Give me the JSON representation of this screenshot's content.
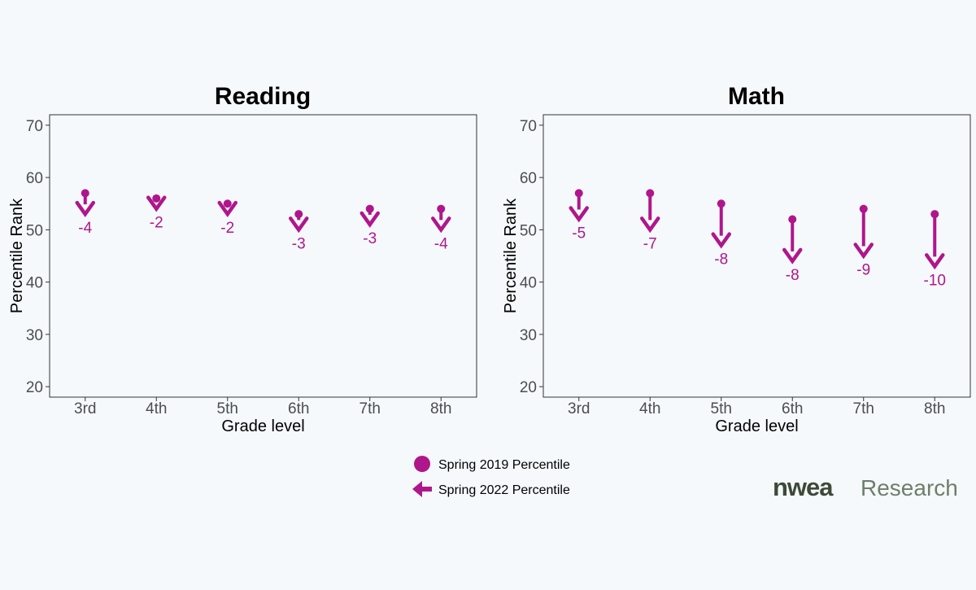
{
  "chart_data": {
    "type": "dot-arrow",
    "panels": [
      {
        "title": "Reading",
        "xlabel": "Grade level",
        "ylabel": "Percentile Rank",
        "ylim": [
          18,
          72
        ],
        "yticks": [
          20,
          30,
          40,
          50,
          60,
          70
        ],
        "categories": [
          "3rd",
          "4th",
          "5th",
          "6th",
          "7th",
          "8th"
        ],
        "spring_2019": [
          57,
          56,
          55,
          53,
          54,
          54
        ],
        "spring_2022": [
          53,
          54,
          53,
          50,
          51,
          50
        ],
        "change_labels": [
          "-4",
          "-2",
          "-2",
          "-3",
          "-3",
          "-4"
        ]
      },
      {
        "title": "Math",
        "xlabel": "Grade level",
        "ylabel": "Percentile Rank",
        "ylim": [
          18,
          72
        ],
        "yticks": [
          20,
          30,
          40,
          50,
          60,
          70
        ],
        "categories": [
          "3rd",
          "4th",
          "5th",
          "6th",
          "7th",
          "8th"
        ],
        "spring_2019": [
          57,
          57,
          55,
          52,
          54,
          53
        ],
        "spring_2022": [
          52,
          50,
          47,
          44,
          45,
          43
        ],
        "change_labels": [
          "-5",
          "-7",
          "-8",
          "-8",
          "-9",
          "-10"
        ]
      }
    ],
    "legend": {
      "position": "bottom-center",
      "entries": [
        "Spring 2019 Percentile",
        "Spring 2022 Percentile"
      ]
    },
    "colors": {
      "marker": "#b0168c",
      "axis": "#333333",
      "tick_text": "#4d4d4d"
    },
    "grid": false
  },
  "brand": {
    "name": "nwea",
    "suffix": "Research"
  }
}
